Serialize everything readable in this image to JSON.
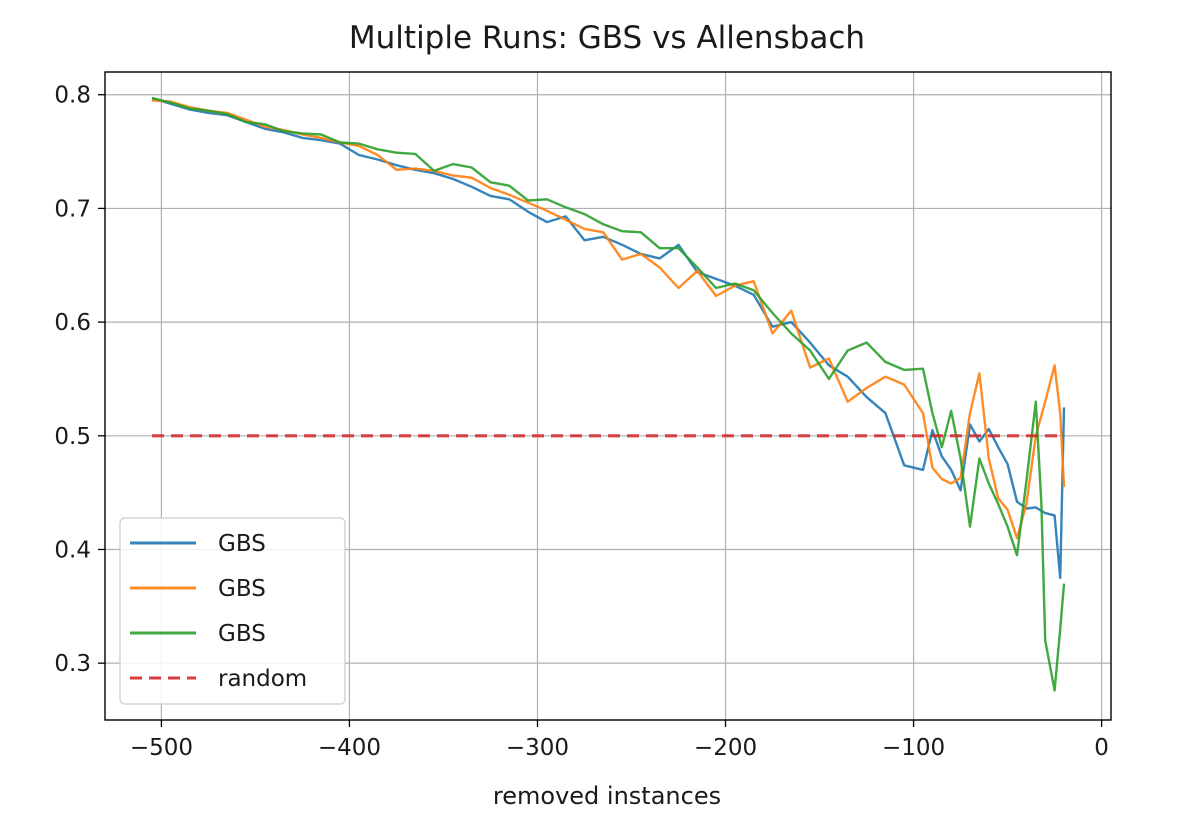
{
  "chart_data": {
    "type": "line",
    "title": "Multiple Runs: GBS vs Allensbach",
    "xlabel": "removed instances",
    "ylabel": "",
    "xlim": [
      -530,
      5
    ],
    "ylim": [
      0.25,
      0.82
    ],
    "xticks": [
      -500,
      -400,
      -300,
      -200,
      -100,
      0
    ],
    "yticks": [
      0.3,
      0.4,
      0.5,
      0.6,
      0.7,
      0.8
    ],
    "xtick_labels": [
      "−500",
      "−400",
      "−300",
      "−200",
      "−100",
      "0"
    ],
    "ytick_labels": [
      "0.3",
      "0.4",
      "0.5",
      "0.6",
      "0.7",
      "0.8"
    ],
    "grid": true,
    "legend": {
      "placement": "lower-left"
    },
    "series": [
      {
        "name": "GBS",
        "color": "#1f77b4",
        "style": "solid",
        "x": [
          -505,
          -495,
          -485,
          -475,
          -465,
          -455,
          -445,
          -435,
          -425,
          -415,
          -405,
          -395,
          -385,
          -375,
          -365,
          -355,
          -345,
          -335,
          -325,
          -315,
          -305,
          -295,
          -285,
          -275,
          -265,
          -255,
          -245,
          -235,
          -225,
          -215,
          -205,
          -195,
          -185,
          -175,
          -165,
          -155,
          -145,
          -135,
          -125,
          -115,
          -105,
          -95,
          -90,
          -85,
          -80,
          -75,
          -70,
          -65,
          -60,
          -55,
          -50,
          -45,
          -40,
          -35,
          -30,
          -25,
          -22,
          -20
        ],
        "y": [
          0.797,
          0.792,
          0.787,
          0.784,
          0.782,
          0.776,
          0.77,
          0.767,
          0.762,
          0.76,
          0.757,
          0.747,
          0.743,
          0.738,
          0.734,
          0.731,
          0.726,
          0.719,
          0.711,
          0.708,
          0.697,
          0.688,
          0.693,
          0.672,
          0.675,
          0.668,
          0.66,
          0.656,
          0.668,
          0.644,
          0.638,
          0.632,
          0.624,
          0.596,
          0.6,
          0.582,
          0.562,
          0.552,
          0.534,
          0.52,
          0.474,
          0.47,
          0.505,
          0.482,
          0.47,
          0.452,
          0.51,
          0.495,
          0.506,
          0.49,
          0.475,
          0.442,
          0.436,
          0.437,
          0.432,
          0.43,
          0.375,
          0.525
        ]
      },
      {
        "name": "GBS",
        "color": "#ff7f0e",
        "style": "solid",
        "x": [
          -505,
          -495,
          -485,
          -475,
          -465,
          -455,
          -445,
          -435,
          -425,
          -415,
          -405,
          -395,
          -385,
          -375,
          -365,
          -355,
          -345,
          -335,
          -325,
          -315,
          -305,
          -295,
          -285,
          -275,
          -265,
          -255,
          -245,
          -235,
          -225,
          -215,
          -205,
          -195,
          -185,
          -175,
          -165,
          -155,
          -145,
          -135,
          -125,
          -115,
          -105,
          -95,
          -90,
          -85,
          -80,
          -75,
          -70,
          -65,
          -60,
          -55,
          -50,
          -45,
          -40,
          -35,
          -30,
          -25,
          -22,
          -20
        ],
        "y": [
          0.795,
          0.794,
          0.789,
          0.786,
          0.784,
          0.778,
          0.772,
          0.769,
          0.765,
          0.762,
          0.758,
          0.755,
          0.747,
          0.734,
          0.735,
          0.733,
          0.729,
          0.727,
          0.718,
          0.712,
          0.705,
          0.698,
          0.69,
          0.682,
          0.679,
          0.655,
          0.66,
          0.648,
          0.63,
          0.645,
          0.623,
          0.632,
          0.636,
          0.59,
          0.61,
          0.56,
          0.568,
          0.53,
          0.542,
          0.552,
          0.545,
          0.52,
          0.472,
          0.462,
          0.458,
          0.463,
          0.52,
          0.555,
          0.48,
          0.445,
          0.435,
          0.41,
          0.44,
          0.5,
          0.53,
          0.562,
          0.52,
          0.455
        ]
      },
      {
        "name": "GBS",
        "color": "#2ca02c",
        "style": "solid",
        "x": [
          -505,
          -495,
          -485,
          -475,
          -465,
          -455,
          -445,
          -435,
          -425,
          -415,
          -405,
          -395,
          -385,
          -375,
          -365,
          -355,
          -345,
          -335,
          -325,
          -315,
          -305,
          -295,
          -285,
          -275,
          -265,
          -255,
          -245,
          -235,
          -225,
          -215,
          -205,
          -195,
          -185,
          -175,
          -165,
          -155,
          -145,
          -135,
          -125,
          -115,
          -105,
          -95,
          -90,
          -85,
          -80,
          -75,
          -70,
          -65,
          -60,
          -55,
          -50,
          -45,
          -40,
          -35,
          -32,
          -30,
          -25,
          -22,
          -20
        ],
        "y": [
          0.797,
          0.793,
          0.788,
          0.786,
          0.783,
          0.776,
          0.774,
          0.768,
          0.766,
          0.765,
          0.758,
          0.757,
          0.752,
          0.749,
          0.748,
          0.733,
          0.739,
          0.736,
          0.723,
          0.72,
          0.707,
          0.708,
          0.701,
          0.695,
          0.686,
          0.68,
          0.679,
          0.665,
          0.665,
          0.648,
          0.63,
          0.634,
          0.628,
          0.608,
          0.59,
          0.575,
          0.55,
          0.575,
          0.582,
          0.565,
          0.558,
          0.559,
          0.52,
          0.49,
          0.522,
          0.48,
          0.42,
          0.48,
          0.458,
          0.44,
          0.42,
          0.395,
          0.46,
          0.53,
          0.44,
          0.32,
          0.276,
          0.33,
          0.37
        ]
      },
      {
        "name": "random",
        "color": "#d62728",
        "style": "dashed",
        "x": [
          -505,
          -20
        ],
        "y": [
          0.5,
          0.5
        ]
      }
    ]
  }
}
